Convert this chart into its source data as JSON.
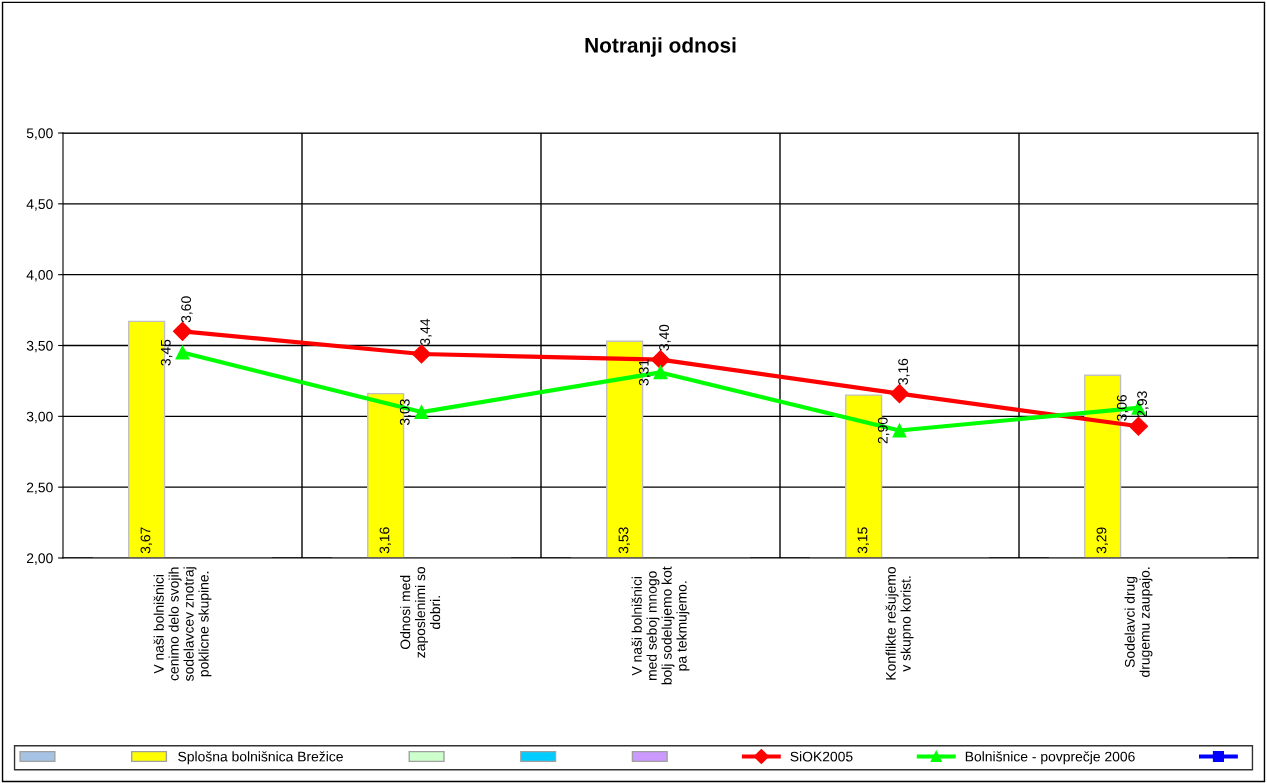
{
  "chart_data": {
    "type": "bar",
    "title": "Notranji odnosi",
    "categories": [
      "V naši bolnišnici\ncenimo delo svojih\nsodelavcev znotraj\npoklicne skupine.",
      "Odnosi med\nzaposlenimi so\ndobri.",
      "V naši bolnišnici\nmed seboj mnogo\nbolj sodelujemo kot\npa tekmujemo.",
      "Konflikte rešujemo\nv skupno korist.",
      "Sodelavci drug\ndrugemu zaupajo."
    ],
    "series": [
      {
        "color": "#a6c3e6",
        "values": [
          null,
          null,
          null,
          null,
          null
        ]
      },
      {
        "name": "Splošna bolnišnica Brežice",
        "color": "#ffff00",
        "values": [
          3.67,
          3.16,
          3.53,
          3.15,
          3.29
        ],
        "value_labels": [
          "3,67",
          "3,16",
          "3,53",
          "3,15",
          "3,29"
        ]
      },
      {
        "color": "#ccffcc",
        "values": [
          null,
          null,
          null,
          null,
          null
        ]
      },
      {
        "color": "#00ccff",
        "values": [
          null,
          null,
          null,
          null,
          null
        ]
      },
      {
        "color": "#cc99ff",
        "values": [
          null,
          null,
          null,
          null,
          null
        ]
      },
      {
        "type": "line",
        "name": "SiOK2005",
        "color": "#ff0000",
        "marker": "diamond",
        "values": [
          3.6,
          3.44,
          3.4,
          3.16,
          2.93
        ],
        "value_labels": [
          "3,60",
          "3,44",
          "3,40",
          "3,16",
          "2,93"
        ]
      },
      {
        "type": "line",
        "name": "Bolnišnice - povprečje 2006",
        "color": "#00ff00",
        "marker": "triangle",
        "values": [
          3.45,
          3.03,
          3.31,
          2.9,
          3.06
        ],
        "value_labels": [
          "3,45",
          "3,03",
          "3,31",
          "2,90",
          "3,06"
        ]
      },
      {
        "type": "line",
        "color": "#0000ff",
        "marker": "square",
        "values": [
          null,
          null,
          null,
          null,
          null
        ]
      }
    ],
    "ylim": [
      2,
      5
    ],
    "yticks": [
      {
        "value": 2,
        "label": "2,00"
      },
      {
        "value": 2.5,
        "label": "2,50"
      },
      {
        "value": 3,
        "label": "3,00"
      },
      {
        "value": 3.5,
        "label": "3,50"
      },
      {
        "value": 4,
        "label": "4,00"
      },
      {
        "value": 4.5,
        "label": "4,50"
      },
      {
        "value": 5,
        "label": "5,00"
      }
    ],
    "grid": true,
    "legend": "bottom"
  }
}
